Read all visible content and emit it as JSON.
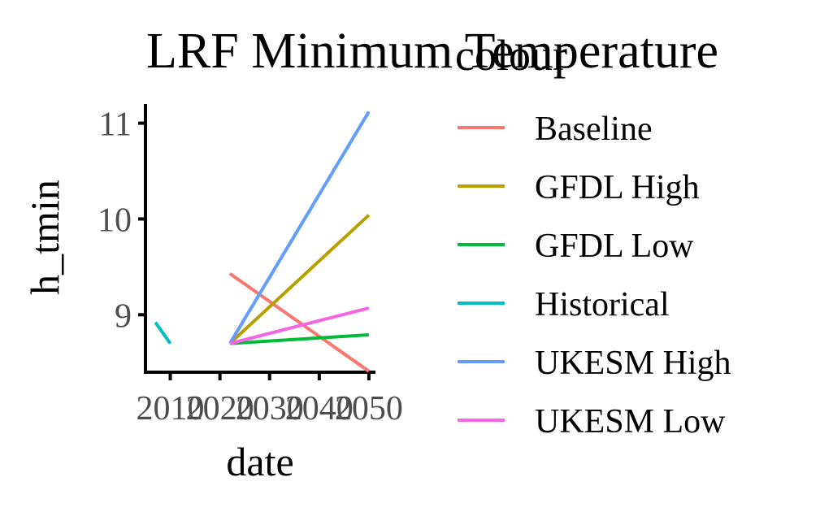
{
  "chart_data": {
    "type": "line",
    "title": "LRF Minimum Temperature",
    "xlabel": "date",
    "ylabel": "h_tmin",
    "xlim": [
      2005,
      2051
    ],
    "ylim": [
      8.4,
      11.2
    ],
    "x_ticks": [
      2010,
      2020,
      2030,
      2040,
      2050
    ],
    "x_tick_labels": [
      "2010",
      "2020",
      "2030",
      "2040",
      "2050"
    ],
    "y_ticks": [
      9,
      10,
      11
    ],
    "y_tick_labels": [
      "9",
      "10",
      "11"
    ],
    "grid": false,
    "legend": {
      "title": "colour",
      "placement": "right"
    },
    "series": [
      {
        "name": "Baseline",
        "color": "#F8766D",
        "x": [
          2022,
          2050
        ],
        "y": [
          9.43,
          8.41
        ]
      },
      {
        "name": "GFDL High",
        "color": "#B79F00",
        "x": [
          2022,
          2050
        ],
        "y": [
          8.7,
          10.04
        ]
      },
      {
        "name": "GFDL Low",
        "color": "#00BA38",
        "x": [
          2022,
          2050
        ],
        "y": [
          8.7,
          8.79
        ]
      },
      {
        "name": "Historical",
        "color": "#00BFC4",
        "x": [
          2007,
          2010
        ],
        "y": [
          8.92,
          8.7
        ]
      },
      {
        "name": "UKESM High",
        "color": "#619CFF",
        "x": [
          2022,
          2050
        ],
        "y": [
          8.7,
          11.12
        ]
      },
      {
        "name": "UKESM Low",
        "color": "#F564E3",
        "x": [
          2022,
          2050
        ],
        "y": [
          8.7,
          9.07
        ]
      }
    ]
  }
}
